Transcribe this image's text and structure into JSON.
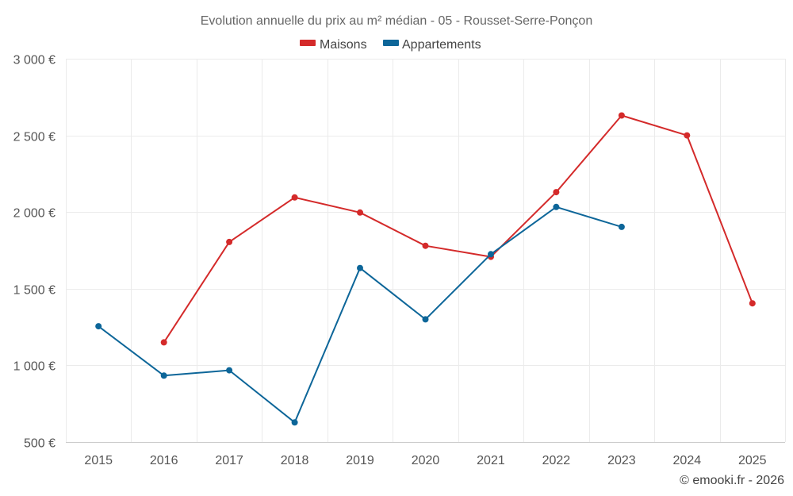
{
  "chart_data": {
    "type": "line",
    "title": "Evolution annuelle du prix au m² médian - 05 - Rousset-Serre-Ponçon",
    "xlabel": "",
    "ylabel": "",
    "x": [
      2015,
      2016,
      2017,
      2018,
      2019,
      2020,
      2021,
      2022,
      2023,
      2024,
      2025
    ],
    "ylim": [
      500,
      3000
    ],
    "yticks": [
      500,
      1000,
      1500,
      2000,
      2500,
      3000
    ],
    "ytick_labels": [
      "500 €",
      "1 000 €",
      "1 500 €",
      "2 000 €",
      "2 500 €",
      "3 000 €"
    ],
    "xtick_labels": [
      "2015",
      "2016",
      "2017",
      "2018",
      "2019",
      "2020",
      "2021",
      "2022",
      "2023",
      "2024",
      "2025"
    ],
    "grid": true,
    "legend": "top-center",
    "series": [
      {
        "name": "Maisons",
        "color": "#d42a2a",
        "values": [
          null,
          1150,
          1805,
          2095,
          1997,
          1780,
          1708,
          2130,
          2630,
          2500,
          1405
        ]
      },
      {
        "name": "Appartements",
        "color": "#0d6699",
        "values": [
          1255,
          933,
          968,
          628,
          1635,
          1300,
          1725,
          2033,
          1903,
          null,
          null
        ]
      }
    ]
  },
  "credit": "© emooki.fr - 2026"
}
